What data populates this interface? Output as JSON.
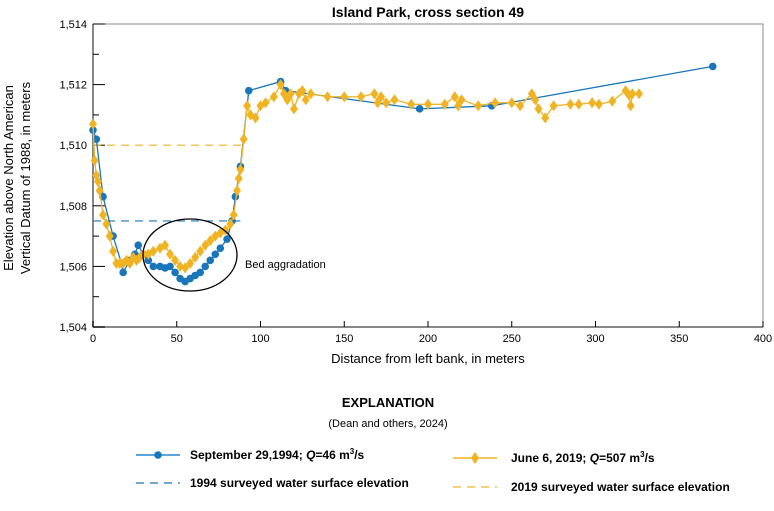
{
  "chart_data": {
    "type": "line",
    "title": "Island Park, cross section 49",
    "xlabel": "Distance from left bank, in meters",
    "ylabel": [
      "Elevation above North American",
      "Vertical Datum of 1988, in meters"
    ],
    "xlim": [
      0,
      400
    ],
    "ylim": [
      1504,
      1514
    ],
    "xticks": [
      0,
      50,
      100,
      150,
      200,
      250,
      300,
      350,
      400
    ],
    "yticks": [
      "1,504",
      "1,506",
      "1,508",
      "1,510",
      "1,512",
      "1,514"
    ],
    "yticks_values": [
      1504,
      1506,
      1508,
      1510,
      1512,
      1514
    ],
    "grid": false,
    "annotation": "Bed aggradation",
    "series": [
      {
        "name": "September 29,1994; Q=46 m³/s",
        "color": "#1a76bb",
        "marker": "circle",
        "x": [
          0,
          2,
          6,
          12,
          17,
          18,
          22,
          25,
          27,
          30,
          33,
          36,
          40,
          43,
          46,
          49,
          52,
          55,
          58,
          61,
          64,
          67,
          70,
          73,
          76,
          80,
          83,
          85,
          88,
          93,
          112,
          115,
          195,
          238,
          370
        ],
        "y": [
          1510.5,
          1510.2,
          1508.3,
          1507.0,
          1506.1,
          1505.8,
          1506.2,
          1506.4,
          1506.7,
          1506.4,
          1506.2,
          1506.0,
          1506.0,
          1505.95,
          1506.0,
          1505.8,
          1505.6,
          1505.5,
          1505.6,
          1505.7,
          1505.8,
          1506.0,
          1506.2,
          1506.4,
          1506.6,
          1506.9,
          1507.5,
          1508.3,
          1509.3,
          1511.8,
          1512.1,
          1511.8,
          1511.2,
          1511.3,
          1512.6
        ]
      },
      {
        "name": "June 6, 2019; Q=507 m³/s",
        "color": "#f0b323",
        "marker": "diamond",
        "x": [
          0,
          1,
          2,
          3,
          4,
          6,
          8,
          10,
          12,
          14,
          16,
          18,
          20,
          22,
          24,
          26,
          28,
          30,
          33,
          36,
          40,
          43,
          46,
          49,
          52,
          55,
          58,
          61,
          64,
          67,
          70,
          73,
          76,
          79,
          82,
          84,
          86,
          87,
          88,
          90,
          92,
          94,
          97,
          100,
          103,
          108,
          112,
          114,
          116,
          118,
          120,
          123,
          125,
          127,
          130,
          140,
          150,
          160,
          168,
          170,
          172,
          175,
          180,
          190,
          200,
          210,
          216,
          218,
          220,
          230,
          240,
          250,
          255,
          262,
          264,
          266,
          270,
          275,
          285,
          290,
          298,
          302,
          310,
          318,
          320,
          321,
          322,
          326
        ],
        "y": [
          1510.7,
          1509.5,
          1509.0,
          1508.8,
          1508.5,
          1507.7,
          1507.4,
          1507.0,
          1506.5,
          1506.1,
          1506.1,
          1506.1,
          1506.2,
          1506.1,
          1506.3,
          1506.2,
          1506.3,
          1506.4,
          1506.4,
          1506.5,
          1506.6,
          1506.7,
          1506.4,
          1506.2,
          1506.0,
          1505.95,
          1506.1,
          1506.3,
          1506.5,
          1506.7,
          1506.85,
          1507.0,
          1507.1,
          1507.2,
          1507.4,
          1507.7,
          1508.5,
          1508.9,
          1509.2,
          1510.2,
          1511.3,
          1511.0,
          1510.9,
          1511.3,
          1511.4,
          1511.6,
          1512.0,
          1511.7,
          1511.5,
          1511.7,
          1511.2,
          1511.7,
          1511.8,
          1511.5,
          1511.7,
          1511.6,
          1511.6,
          1511.6,
          1511.7,
          1511.4,
          1511.6,
          1511.4,
          1511.5,
          1511.35,
          1511.35,
          1511.35,
          1511.6,
          1511.3,
          1511.5,
          1511.3,
          1511.4,
          1511.4,
          1511.3,
          1511.7,
          1511.5,
          1511.2,
          1510.9,
          1511.3,
          1511.35,
          1511.35,
          1511.4,
          1511.35,
          1511.45,
          1511.8,
          1511.65,
          1511.3,
          1511.7,
          1511.7
        ]
      },
      {
        "name": "1994 surveyed water surface elevation",
        "color": "#1a76bb",
        "style": "dashed",
        "x": [
          0,
          88
        ],
        "y": [
          1507.5,
          1507.5
        ]
      },
      {
        "name": "2019 surveyed water surface elevation",
        "color": "#f0b323",
        "style": "dashed",
        "x": [
          0,
          90
        ],
        "y": [
          1510.0,
          1510.0
        ]
      }
    ]
  },
  "legend": {
    "title": "EXPLANATION",
    "subtitle": "(Dean and others, 2024)",
    "s1_pre": "September 29,1994; ",
    "s1_q": "Q",
    "s1_post": "=46 m",
    "s1_unit": "/s",
    "s2_pre": "June 6, 2019; ",
    "s2_q": "Q",
    "s2_post": "=507 m",
    "s2_unit": "/s",
    "sup": "3",
    "s3": "1994 surveyed water surface elevation",
    "s4": "2019 surveyed water surface elevation"
  }
}
